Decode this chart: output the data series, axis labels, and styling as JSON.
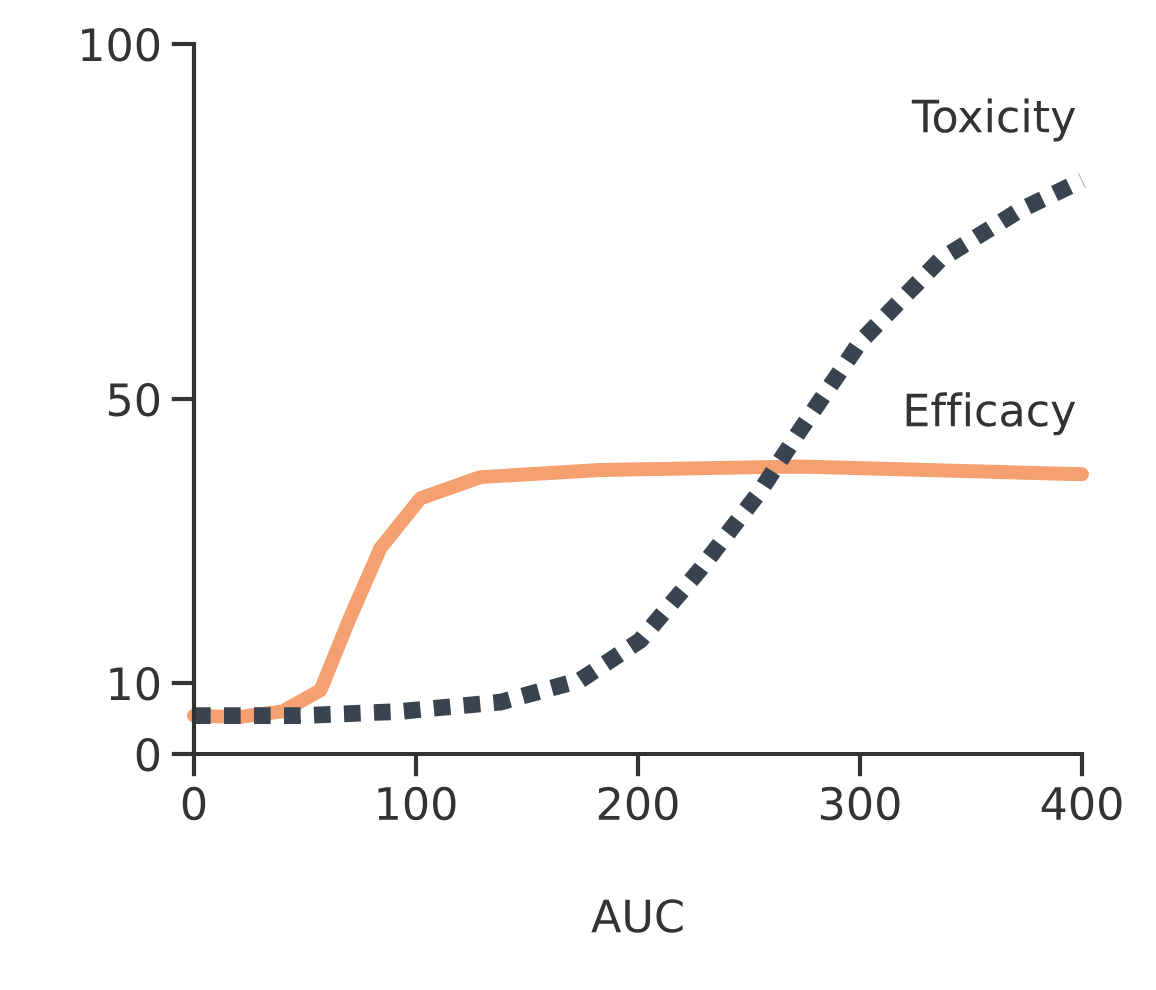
{
  "chart_data": {
    "type": "line",
    "xlabel": "AUC",
    "xlim": [
      0,
      400
    ],
    "ylim": [
      0,
      100
    ],
    "xticks": [
      0,
      100,
      200,
      300,
      400
    ],
    "yticks": [
      0,
      10,
      50,
      100
    ],
    "grid": false,
    "legend": false,
    "marker": "none",
    "series": [
      {
        "name": "Efficacy",
        "color": "#f4a070",
        "line_style": "solid",
        "x": [
          0,
          20,
          40,
          57,
          70,
          84,
          102,
          129,
          183,
          273,
          400
        ],
        "values": [
          5.4,
          5.2,
          6,
          9,
          19,
          29,
          36,
          39,
          40,
          40.5,
          39.4
        ]
      },
      {
        "name": "Toxicity",
        "color": "#3a4450",
        "line_style": "dotted",
        "x": [
          0,
          48,
          93,
          138,
          174,
          201,
          228,
          255,
          273,
          300,
          336,
          372,
          400
        ],
        "values": [
          5.4,
          5.4,
          6,
          7.3,
          10.4,
          16,
          26,
          37,
          45.6,
          58,
          69.6,
          76.6,
          80.8
        ]
      }
    ]
  }
}
